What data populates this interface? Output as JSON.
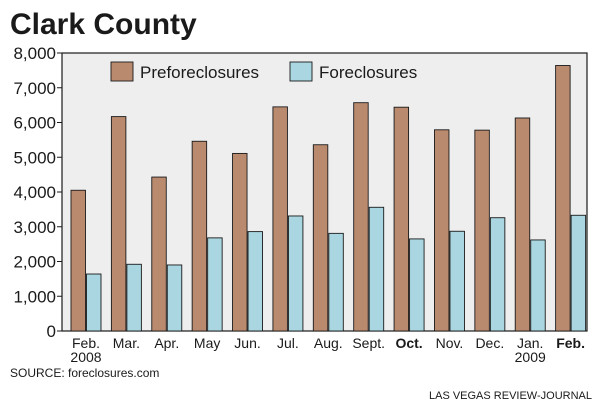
{
  "chart_data": {
    "type": "bar",
    "title": "Clark County",
    "categories": [
      "Feb.",
      "Mar.",
      "Apr.",
      "May",
      "Jun.",
      "Jul.",
      "Aug.",
      "Sept.",
      "Oct.",
      "Nov.",
      "Dec.",
      "Jan.",
      "Feb."
    ],
    "category_sublabels": [
      "2008",
      "",
      "",
      "",
      "",
      "",
      "",
      "",
      "",
      "",
      "",
      "2009",
      ""
    ],
    "bold_categories": [
      8,
      12
    ],
    "series": [
      {
        "name": "Preforeclosures",
        "color": "#b98a6e",
        "values": [
          4050,
          6170,
          4430,
          5460,
          5110,
          6450,
          5360,
          6570,
          6440,
          5790,
          5780,
          6130,
          7640
        ]
      },
      {
        "name": "Foreclosures",
        "color": "#a9d6e0",
        "values": [
          1640,
          1920,
          1900,
          2680,
          2860,
          3310,
          2810,
          3560,
          2650,
          2870,
          3260,
          2620,
          3330
        ]
      }
    ],
    "ylim": [
      0,
      8000
    ],
    "yticks": [
      "0",
      "1,000",
      "2,000",
      "3,000",
      "4,000",
      "5,000",
      "6,000",
      "7,000",
      "8,000"
    ],
    "ytick_values": [
      0,
      1000,
      2000,
      3000,
      4000,
      5000,
      6000,
      7000,
      8000
    ],
    "grid": false,
    "legend_position": "top"
  },
  "source": "SOURCE: foreclosures.com",
  "credit": "LAS VEGAS REVIEW-JOURNAL",
  "colors": {
    "plot_background": "#eeeeee",
    "frame": "#1a1a1a"
  }
}
